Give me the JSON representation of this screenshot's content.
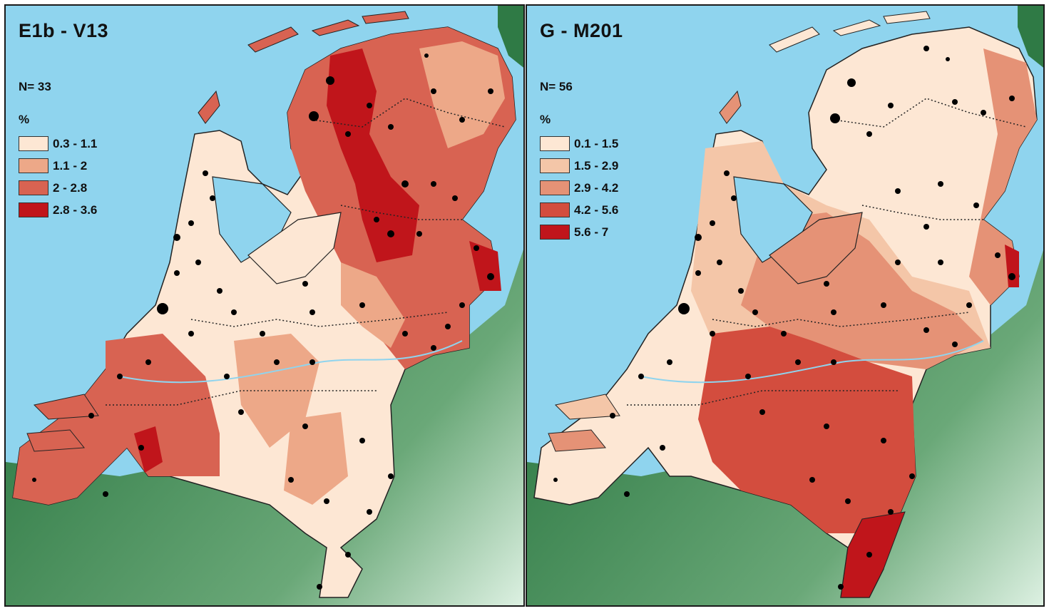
{
  "maps": [
    {
      "title": "E1b - V13",
      "n_label": "N= 33",
      "unit": "%",
      "legend": [
        {
          "label": "0.3 - 1.1",
          "color": "#fde7d4"
        },
        {
          "label": "1.1 - 2",
          "color": "#eda888"
        },
        {
          "label": "2 - 2.8",
          "color": "#d86352"
        },
        {
          "label": "2.8 - 3.6",
          "color": "#c0151b"
        }
      ]
    },
    {
      "title": "G - M201",
      "n_label": "N= 56",
      "unit": "%",
      "legend": [
        {
          "label": "0.1 - 1.5",
          "color": "#fde7d4"
        },
        {
          "label": "1.5 - 2.9",
          "color": "#f4c6a8"
        },
        {
          "label": "2.9 - 4.2",
          "color": "#e59276"
        },
        {
          "label": "4.2 - 5.6",
          "color": "#d34d3e"
        },
        {
          "label": "5.6 - 7",
          "color": "#c0151b"
        }
      ]
    }
  ],
  "colors": {
    "sea": "#8fd4ee",
    "land_outside": "#3f8a55",
    "border": "#222222"
  }
}
